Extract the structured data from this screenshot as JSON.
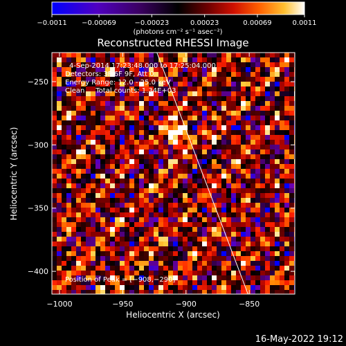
{
  "chart_data": {
    "type": "heatmap",
    "title": "Reconstructed RHESSI Image",
    "xlabel": "Heliocentric X (arcsec)",
    "ylabel": "Heliocentric Y (arcsec)",
    "xlim": [
      -1006,
      -814
    ],
    "ylim": [
      -418,
      -227
    ],
    "x_ticks": [
      -1000,
      -950,
      -900,
      -850
    ],
    "x_tick_labels": [
      "−1000",
      "−950",
      "−900",
      "−850"
    ],
    "y_ticks": [
      -250,
      -300,
      -350,
      -400
    ],
    "y_tick_labels": [
      "−250",
      "−300",
      "−350",
      "−400"
    ],
    "colorbar": {
      "min": -0.0011,
      "max": 0.0011,
      "ticks": [
        -0.0011,
        -0.00069,
        -0.00023,
        0.00023,
        0.00069,
        0.0011
      ],
      "tick_labels": [
        "−0.0011",
        "−0.00069",
        "−0.00023",
        "0.00023",
        "0.00069",
        "0.0011"
      ],
      "units_label": "(photons cm⁻² s⁻¹ asec⁻²)"
    },
    "info_lines": [
      "4-Sep-2014 17:23:48.000 to 17:25:04.000",
      "Detectors: 3F 6F 9F, Att 0",
      "Energy Range: 12.0 - 25.0 keV",
      "Clean     Total counts: 1.34E+03"
    ],
    "peak_label": "Position of Peak = [−908,−290]",
    "peak_position": [
      -908,
      -290
    ],
    "limb_line": [
      [
        -923,
        -227
      ],
      [
        -851,
        -418
      ]
    ],
    "grid": false
  },
  "footer": {
    "timestamp": "16-May-2022 19:12"
  },
  "colors": {
    "background": "#000000",
    "foreground": "#ffffff",
    "colormap": [
      "#0000ff",
      "#6a00b0",
      "#4a0070",
      "#000000",
      "#400000",
      "#a00000",
      "#ff2000",
      "#ff8000",
      "#ffd040",
      "#ffffff"
    ]
  }
}
